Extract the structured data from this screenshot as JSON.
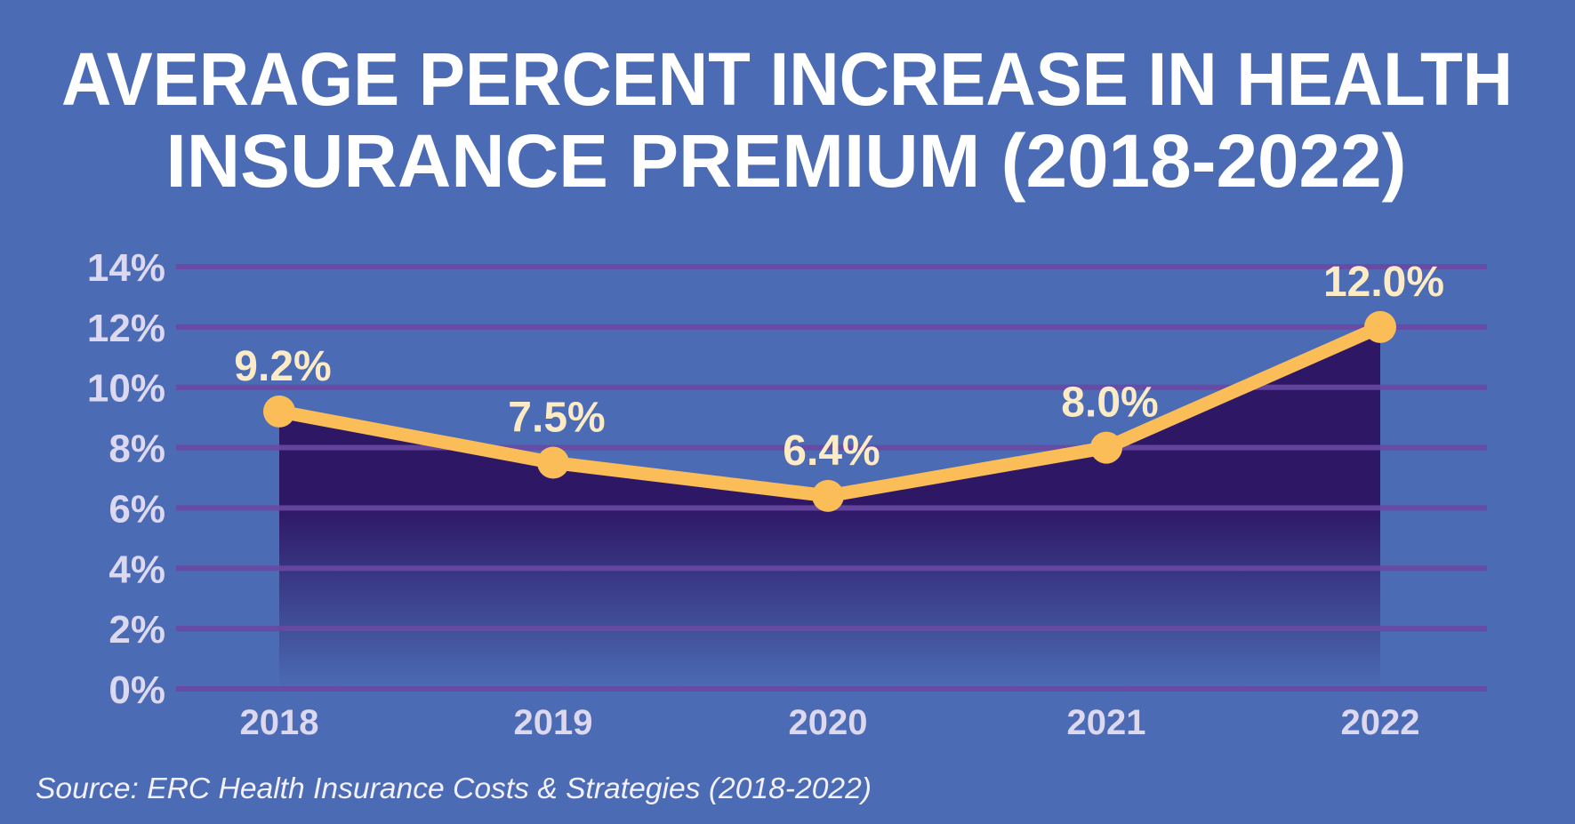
{
  "chart_data": {
    "type": "area",
    "title_lines": [
      "AVERAGE PERCENT INCREASE IN HEALTH",
      "INSURANCE PREMIUM (2018-2022)"
    ],
    "categories": [
      "2018",
      "2019",
      "2020",
      "2021",
      "2022"
    ],
    "values": [
      9.2,
      7.5,
      6.4,
      8.0,
      12.0
    ],
    "data_labels": [
      "9.2%",
      "7.5%",
      "6.4%",
      "8.0%",
      "12.0%"
    ],
    "y_ticks": [
      "0%",
      "2%",
      "4%",
      "6%",
      "8%",
      "10%",
      "12%",
      "14%"
    ],
    "ylim": [
      0,
      14
    ],
    "grid": true,
    "source": "Source: ERC Health Insurance Costs & Strategies (2018-2022)",
    "colors": {
      "background": "#4b6bb4",
      "grid": "#6a48a2",
      "area": "#2e1866",
      "line": "#fbbd58",
      "data_label": "#fdebc6",
      "title": "#ffffff"
    }
  }
}
